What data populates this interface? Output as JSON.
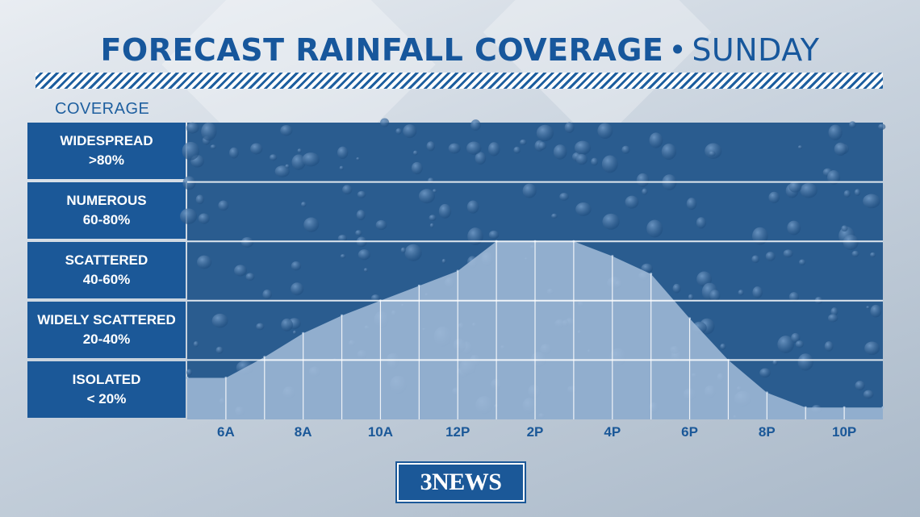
{
  "title": {
    "main": "FORECAST RAINFALL COVERAGE",
    "separator": "•",
    "sub": "SUNDAY"
  },
  "coverage_label": "COVERAGE",
  "categories": [
    {
      "name": "WIDESPREAD",
      "range": ">80%"
    },
    {
      "name": "NUMEROUS",
      "range": "60-80%"
    },
    {
      "name": "SCATTERED",
      "range": "40-60%"
    },
    {
      "name": "WIDELY SCATTERED",
      "range": "20-40%"
    },
    {
      "name": "ISOLATED",
      "range": "< 20%"
    }
  ],
  "logo_text": "3NEWS",
  "colors": {
    "brand_blue": "#1b5898",
    "title_blue": "#17579c",
    "fill_light": "#9fbad7",
    "plot_dark": "#2a5c8f"
  },
  "chart_data": {
    "type": "area",
    "title": "FORECAST RAINFALL COVERAGE • SUNDAY",
    "ylabel": "COVERAGE",
    "xlabel": "",
    "x_tick_labels": [
      "6A",
      "8A",
      "10A",
      "12P",
      "2P",
      "4P",
      "6P",
      "8P",
      "10P"
    ],
    "x_hours": [
      5,
      6,
      7,
      8,
      9,
      10,
      11,
      12,
      13,
      14,
      15,
      16,
      17,
      18,
      19,
      20,
      21,
      22,
      23
    ],
    "y_percent": [
      14,
      14,
      21,
      29,
      35,
      40,
      45,
      50,
      60,
      60,
      60,
      55,
      49,
      34,
      20,
      9,
      4,
      4,
      4
    ],
    "ylim": [
      0,
      100
    ],
    "y_bands": [
      {
        "label": "ISOLATED",
        "range": "< 20%"
      },
      {
        "label": "WIDELY SCATTERED",
        "range": "20-40%"
      },
      {
        "label": "SCATTERED",
        "range": "40-60%"
      },
      {
        "label": "NUMEROUS",
        "range": "60-80%"
      },
      {
        "label": "WIDESPREAD",
        "range": ">80%"
      }
    ],
    "grid": true,
    "legend": "none"
  }
}
